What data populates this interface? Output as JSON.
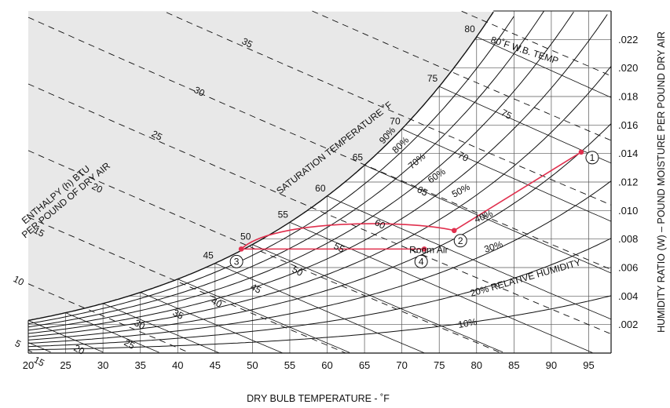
{
  "chart_data": {
    "type": "psychrometric",
    "xlabel": "DRY BULB TEMPERATURE - ˚F",
    "ylabel": "HUMIDITY RATIO (W) – POUND MOISTURE PER POUND DRY AIR",
    "xlim": [
      20,
      98
    ],
    "ylim": [
      0,
      0.024
    ],
    "x_ticks": [
      "20",
      "25",
      "30",
      "35",
      "40",
      "45",
      "50",
      "55",
      "60",
      "65",
      "70",
      "75",
      "80",
      "85",
      "90",
      "95"
    ],
    "y_ticks": [
      ".002",
      ".004",
      ".006",
      ".008",
      ".010",
      ".012",
      ".014",
      ".016",
      ".018",
      ".020",
      ".022"
    ],
    "enthalpy_label": [
      "ENTHALPY (h) BTU",
      "PER POUND OF DRY AIR"
    ],
    "enthalpy_ticks": [
      "5",
      "10",
      "15",
      "20",
      "25",
      "30",
      "35"
    ],
    "saturation_label": "SATURATION TEMPERATURE ˚F",
    "saturation_ticks": [
      "45",
      "50",
      "55",
      "60",
      "65",
      "70",
      "75",
      "80"
    ],
    "wet_bulb_label": "80˚F W.B. TEMP",
    "wet_bulb_ticks": [
      "15",
      "20",
      "25",
      "30",
      "35",
      "40",
      "45",
      "50",
      "55",
      "60",
      "65",
      "70",
      "75"
    ],
    "rh_curves": [
      10,
      20,
      30,
      40,
      50,
      60,
      70,
      80,
      90
    ],
    "rh_labels": [
      "10%",
      "20% RELATIVE HUMIDITY",
      "30%",
      "40%",
      "50%",
      "60%",
      "70%",
      "80%",
      "90%"
    ],
    "process_points": [
      {
        "id": "1",
        "label": "1",
        "drybulb": 94,
        "humidity_ratio": 0.0141
      },
      {
        "id": "2",
        "label": "2",
        "drybulb": 77,
        "humidity_ratio": 0.0086
      },
      {
        "id": "3",
        "label": "3",
        "drybulb": 48.5,
        "humidity_ratio": 0.0073
      },
      {
        "id": "4",
        "label": "4",
        "drybulb": 73,
        "humidity_ratio": 0.0073
      }
    ],
    "room_air_label": "Room Air",
    "process_color": "#e0304e",
    "supersaturated_fill": "#e8e8e8",
    "grid": true
  }
}
